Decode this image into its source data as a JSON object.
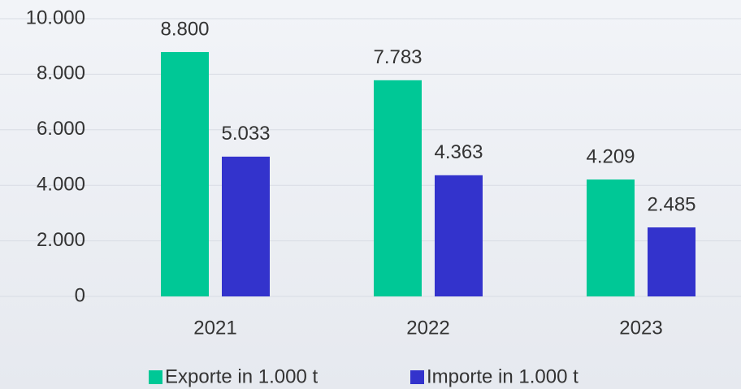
{
  "chart_data": {
    "type": "bar",
    "categories": [
      "2021",
      "2022",
      "2023"
    ],
    "series": [
      {
        "name": "Exporte in 1.000 t",
        "color": "#00c896",
        "values": [
          8800,
          7783,
          4209
        ],
        "value_labels": [
          "8.800",
          "7.783",
          "4.209"
        ]
      },
      {
        "name": "Importe in 1.000 t",
        "color": "#3333cc",
        "values": [
          5033,
          4363,
          2485
        ],
        "value_labels": [
          "5.033",
          "4.363",
          "2.485"
        ]
      }
    ],
    "ylim": [
      0,
      10000
    ],
    "yticks": [
      0,
      {
        "value": 2000,
        "label": "2.000"
      },
      {
        "value": 4000,
        "label": "4.000"
      },
      {
        "value": 6000,
        "label": "6.000"
      },
      {
        "value": 8000,
        "label": "8.000"
      },
      {
        "value": 10000,
        "label": "10.000"
      }
    ],
    "grid": true
  }
}
